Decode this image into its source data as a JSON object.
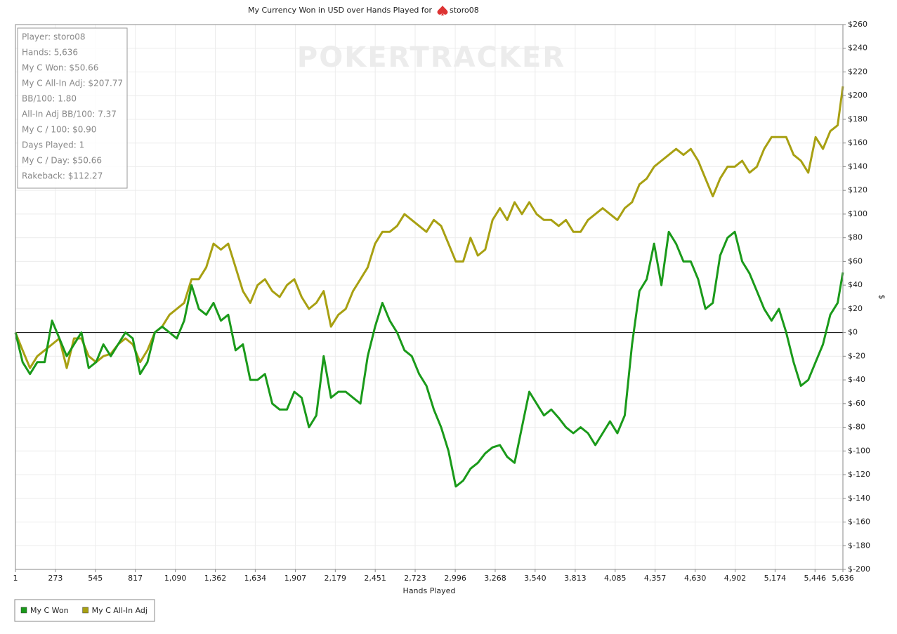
{
  "chart_data": {
    "type": "line",
    "title": "My Currency Won in USD over Hands Played for",
    "title_player": "storo08",
    "watermark": "POKERTRACKER",
    "x_label": "Hands Played",
    "y_label": "$",
    "stats": [
      "Player: storo08",
      "Hands: 5,636",
      "My C Won: $50.66",
      "My C All-In Adj: $207.77",
      "BB/100: 1.80",
      "All-In Adj BB/100: 7.37",
      "My C / 100: $0.90",
      "Days Played: 1",
      "My C / Day: $50.66",
      "Rakeback: $112.27"
    ],
    "grid": true,
    "xlim": [
      1,
      5636
    ],
    "ylim": [
      -200,
      260
    ],
    "xticks": [
      1,
      273,
      545,
      817,
      {
        "value": 1090,
        "label": "1,090"
      },
      {
        "value": 1362,
        "label": "1,362"
      },
      {
        "value": 1634,
        "label": "1,634"
      },
      {
        "value": 1907,
        "label": "1,907"
      },
      {
        "value": 2179,
        "label": "2,179"
      },
      {
        "value": 2451,
        "label": "2,451"
      },
      {
        "value": 2723,
        "label": "2,723"
      },
      {
        "value": 2996,
        "label": "2,996"
      },
      {
        "value": 3268,
        "label": "3,268"
      },
      {
        "value": 3540,
        "label": "3,540"
      },
      {
        "value": 3813,
        "label": "3,813"
      },
      {
        "value": 4085,
        "label": "4,085"
      },
      {
        "value": 4357,
        "label": "4,357"
      },
      {
        "value": 4630,
        "label": "4,630"
      },
      {
        "value": 4902,
        "label": "4,902"
      },
      {
        "value": 5174,
        "label": "5,174"
      },
      {
        "value": 5446,
        "label": "5,446"
      },
      {
        "value": 5636,
        "label": "5,636"
      }
    ],
    "yticks": [
      {
        "value": -200,
        "label": "$-200"
      },
      {
        "value": -180,
        "label": "$-180"
      },
      {
        "value": -160,
        "label": "$-160"
      },
      {
        "value": -140,
        "label": "$-140"
      },
      {
        "value": -120,
        "label": "$-120"
      },
      {
        "value": -100,
        "label": "$-100"
      },
      {
        "value": -80,
        "label": "$-80"
      },
      {
        "value": -60,
        "label": "$-60"
      },
      {
        "value": -40,
        "label": "$-40"
      },
      {
        "value": -20,
        "label": "$-20"
      },
      {
        "value": 0,
        "label": "$0"
      },
      {
        "value": 20,
        "label": "$20"
      },
      {
        "value": 40,
        "label": "$40"
      },
      {
        "value": 60,
        "label": "$60"
      },
      {
        "value": 80,
        "label": "$80"
      },
      {
        "value": 100,
        "label": "$100"
      },
      {
        "value": 120,
        "label": "$120"
      },
      {
        "value": 140,
        "label": "$140"
      },
      {
        "value": 160,
        "label": "$160"
      },
      {
        "value": 180,
        "label": "$180"
      },
      {
        "value": 200,
        "label": "$200"
      },
      {
        "value": 220,
        "label": "$220"
      },
      {
        "value": 240,
        "label": "$240"
      },
      {
        "value": 260,
        "label": "$260"
      }
    ],
    "x": [
      1,
      50,
      100,
      150,
      200,
      250,
      300,
      350,
      400,
      450,
      500,
      550,
      600,
      650,
      700,
      750,
      800,
      850,
      900,
      950,
      1000,
      1050,
      1100,
      1150,
      1200,
      1250,
      1300,
      1350,
      1400,
      1450,
      1500,
      1550,
      1600,
      1650,
      1700,
      1750,
      1800,
      1850,
      1900,
      1950,
      2000,
      2050,
      2100,
      2150,
      2200,
      2250,
      2300,
      2350,
      2400,
      2450,
      2500,
      2550,
      2600,
      2650,
      2700,
      2750,
      2800,
      2850,
      2900,
      2950,
      3000,
      3050,
      3100,
      3150,
      3200,
      3250,
      3300,
      3350,
      3400,
      3450,
      3500,
      3550,
      3600,
      3650,
      3700,
      3750,
      3800,
      3850,
      3900,
      3950,
      4000,
      4050,
      4100,
      4150,
      4200,
      4250,
      4300,
      4350,
      4400,
      4450,
      4500,
      4550,
      4600,
      4650,
      4700,
      4750,
      4800,
      4850,
      4900,
      4950,
      5000,
      5050,
      5100,
      5150,
      5200,
      5250,
      5300,
      5350,
      5400,
      5450,
      5500,
      5550,
      5600,
      5636
    ],
    "series": [
      {
        "name": "My C Won",
        "color": "#1a9a1a",
        "values": [
          0,
          -25,
          -35,
          -25,
          -25,
          10,
          -5,
          -20,
          -10,
          0,
          -30,
          -25,
          -10,
          -20,
          -10,
          0,
          -5,
          -35,
          -25,
          0,
          5,
          0,
          -5,
          10,
          40,
          20,
          15,
          25,
          10,
          15,
          -15,
          -10,
          -40,
          -40,
          -35,
          -60,
          -65,
          -65,
          -50,
          -55,
          -80,
          -70,
          -20,
          -55,
          -50,
          -50,
          -55,
          -60,
          -20,
          5,
          25,
          10,
          0,
          -15,
          -20,
          -35,
          -45,
          -65,
          -80,
          -100,
          -130,
          -125,
          -115,
          -110,
          -102,
          -97,
          -95,
          -105,
          -110,
          -80,
          -50,
          -60,
          -70,
          -65,
          -72,
          -80,
          -85,
          -80,
          -85,
          -95,
          -85,
          -75,
          -85,
          -70,
          -10,
          35,
          45,
          75,
          40,
          85,
          75,
          60,
          60,
          45,
          20,
          25,
          65,
          80,
          85,
          60,
          50,
          35,
          20,
          10,
          20,
          0,
          -25,
          -45,
          -40,
          -25,
          -10,
          15,
          25,
          50.66
        ]
      },
      {
        "name": "My C All-In Adj",
        "color": "#a8a012",
        "values": [
          0,
          -15,
          -30,
          -20,
          -15,
          -10,
          -5,
          -30,
          -5,
          -5,
          -20,
          -25,
          -20,
          -18,
          -10,
          -5,
          -10,
          -25,
          -15,
          0,
          5,
          15,
          20,
          25,
          45,
          45,
          55,
          75,
          70,
          75,
          55,
          35,
          25,
          40,
          45,
          35,
          30,
          40,
          45,
          30,
          20,
          25,
          35,
          5,
          15,
          20,
          35,
          45,
          55,
          75,
          85,
          85,
          90,
          100,
          95,
          90,
          85,
          95,
          90,
          75,
          60,
          60,
          80,
          65,
          70,
          95,
          105,
          95,
          110,
          100,
          110,
          100,
          95,
          95,
          90,
          95,
          85,
          85,
          95,
          100,
          105,
          100,
          95,
          105,
          110,
          125,
          130,
          140,
          145,
          150,
          155,
          150,
          155,
          145,
          130,
          115,
          130,
          140,
          140,
          145,
          135,
          140,
          155,
          165,
          165,
          165,
          150,
          145,
          135,
          165,
          155,
          170,
          175,
          207.77
        ]
      }
    ]
  }
}
